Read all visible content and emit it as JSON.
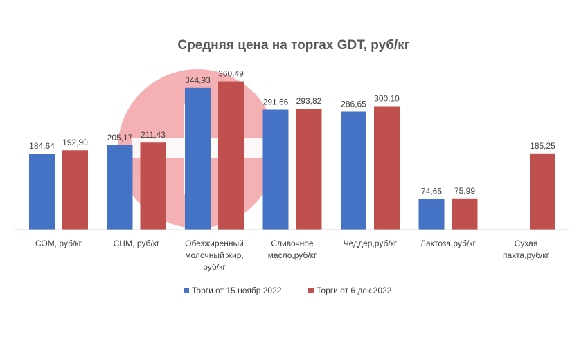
{
  "chart_data": {
    "type": "bar",
    "title": "Средняя цена на торгах GDT, руб/кг",
    "categories": [
      [
        "СОМ, руб/кг"
      ],
      [
        "СЦМ, руб/кг"
      ],
      [
        "Обезжиренный",
        "молочный жир,",
        "руб/кг"
      ],
      [
        "Сливочное",
        "масло,руб/кг"
      ],
      [
        "Чеддер,руб/кг"
      ],
      [
        "Лактоза,руб/кг"
      ],
      [
        "Сухая",
        "пахта,руб/кг"
      ]
    ],
    "series": [
      {
        "name": "Торги от 15 ноябр 2022",
        "color": "#4472C4",
        "values": [
          184.64,
          205.17,
          344.93,
          291.66,
          286.65,
          74.65,
          null
        ],
        "labels": [
          "184,64",
          "205,17",
          "344,93",
          "291,66",
          "286,65",
          "74,65",
          ""
        ]
      },
      {
        "name": "Торги от 6 дек 2022",
        "color": "#C0504D",
        "values": [
          192.9,
          211.43,
          360.49,
          293.82,
          300.1,
          75.99,
          185.25
        ],
        "labels": [
          "192,90",
          "211,43",
          "360,49",
          "293,82",
          "300,10",
          "75,99",
          "185,25"
        ]
      }
    ],
    "ylim": [
      0,
      390
    ],
    "grid": false,
    "legend_position": "bottom",
    "axis_color": "#D9D9D9",
    "watermark_color": "#F4A3A8"
  }
}
